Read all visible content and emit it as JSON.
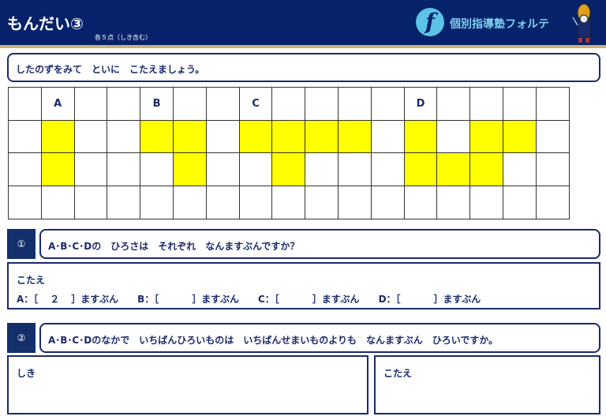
{
  "header": {
    "title": "もんだい③",
    "subtitle": "各５点（しき含む）",
    "brand": "個別指導塾フォルテ",
    "logo_letter": "f"
  },
  "instruction": "したのずをみて　といに　こたえましょう。",
  "grid": {
    "header_labels": [
      "",
      "A",
      "",
      "",
      "B",
      "",
      "",
      "C",
      "",
      "",
      "",
      "",
      "D",
      "",
      "",
      "",
      ""
    ],
    "filled": [
      [],
      [
        1,
        4,
        5,
        7,
        8,
        9,
        10,
        12,
        14,
        15
      ],
      [
        1,
        5,
        8,
        12,
        13,
        14
      ],
      []
    ],
    "fill_color": "#ffff00"
  },
  "q1": {
    "number": "①",
    "text": "A･B･C･Dの　ひろさは　それぞれ　なんますぶんですか？",
    "answer_label": "こたえ",
    "answers": [
      {
        "label": "A：［",
        "value": "２",
        "suffix": "］ますぶん"
      },
      {
        "label": "B：［",
        "value": "",
        "suffix": "］ますぶん"
      },
      {
        "label": "C：［",
        "value": "",
        "suffix": "］ますぶん"
      },
      {
        "label": "D：［",
        "value": "",
        "suffix": "］ますぶん"
      }
    ]
  },
  "q2": {
    "number": "②",
    "text": "A･B･C･Dのなかで　いちばんひろいものは　いちばんせまいものよりも　なんますぶん　ひろいですか。",
    "formula_label": "しき",
    "answer_label": "こたえ"
  }
}
